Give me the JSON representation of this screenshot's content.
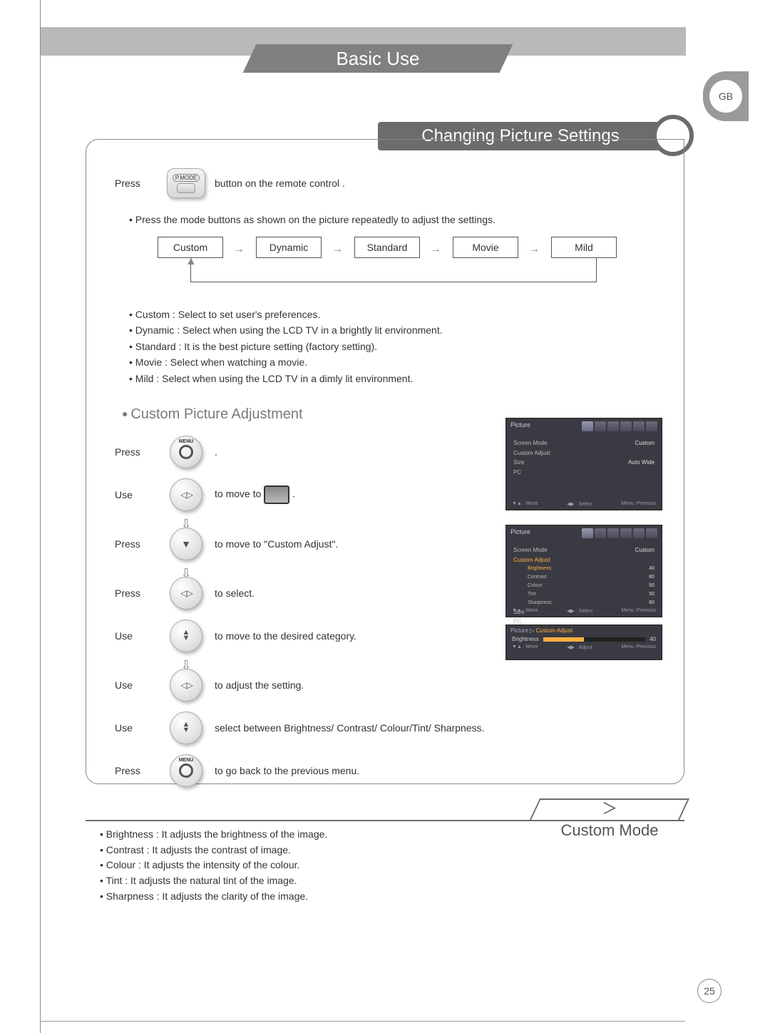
{
  "lang_code": "GB",
  "section_title": "Basic Use",
  "sub_header": "Changing Picture Settings",
  "press_remote": {
    "label": "Press",
    "btn_label": "P.MODE",
    "desc": "button on the remote control ."
  },
  "mode_note": "• Press the mode buttons as shown on the picture repeatedly to adjust the settings.",
  "modes": [
    "Custom",
    "Dynamic",
    "Standard",
    "Movie",
    "Mild"
  ],
  "mode_descriptions": [
    "Custom : Select to set user's preferences.",
    "Dynamic : Select when using the LCD TV in a brightly lit environment.",
    "Standard : It is the best picture setting (factory setting).",
    "Movie : Select when watching a movie.",
    "Mild : Select when using the LCD TV in a dimly lit environment."
  ],
  "subsection_title": "Custom Picture Adjustment",
  "steps": {
    "s1": {
      "lbl": "Press",
      "desc": "."
    },
    "s2": {
      "lbl": "Use",
      "desc_pre": "to move to ",
      "desc_post": " ."
    },
    "s3": {
      "lbl": "Press",
      "desc": "to move to \"Custom Adjust\"."
    },
    "s4": {
      "lbl": "Press",
      "desc": "to select."
    },
    "s5": {
      "lbl": "Use",
      "desc": "to  move to the desired category."
    },
    "s6": {
      "lbl": "Use",
      "desc": "to adjust the setting."
    },
    "s7": {
      "lbl": "Use",
      "desc": "select between Brightness/ Contrast/ Colour/Tint/ Sharpness."
    },
    "s8": {
      "lbl": "Press",
      "desc": "to go back to the previous menu."
    }
  },
  "osd": {
    "title": "Picture",
    "rows": {
      "screen_mode": {
        "k": "Screen Mode",
        "v": "Custom"
      },
      "custom_adjust": {
        "k": "Custom Adjust",
        "v": ""
      },
      "size": {
        "k": "Size",
        "v": "Auto Wide"
      },
      "pc": {
        "k": "PC",
        "v": ""
      }
    },
    "sub_items": [
      {
        "k": "Brightness",
        "v": "40"
      },
      {
        "k": "Contrast",
        "v": "80"
      },
      {
        "k": "Colour",
        "v": "50"
      },
      {
        "k": "Tint",
        "v": "50"
      },
      {
        "k": "Sharpness",
        "v": "60"
      }
    ],
    "footer": {
      "move": "▼▲ : Move",
      "select": "◀▶ : Select",
      "prev": "Menu :Previous"
    },
    "slider": {
      "path_pre": "Picture ▷ ",
      "path_hl": "Custom Adjust",
      "label": "Brightness",
      "value": "40",
      "fill_pct": 40,
      "foot": {
        "move": "▼▲ : Move",
        "adjust": "◀▶ : Adjust",
        "prev": "Menu :Previous"
      }
    }
  },
  "custom_mode_title": "Custom Mode",
  "custom_mode_chevron": "＞",
  "custom_mode_bullets": [
    "Brightness : It adjusts the brightness of the image.",
    "Contrast : It adjusts the contrast of image.",
    "Colour : It adjusts the intensity of the colour.",
    "Tint : It adjusts the natural tint of the image.",
    "Sharpness : It adjusts the clarity of the image."
  ],
  "page_number": "25",
  "colors": {
    "header_gray": "#b9b9b9",
    "mid_gray": "#808080",
    "dark_gray": "#6c6c6c",
    "osd_bg": "#3a3a42",
    "accent": "#ffb040"
  }
}
